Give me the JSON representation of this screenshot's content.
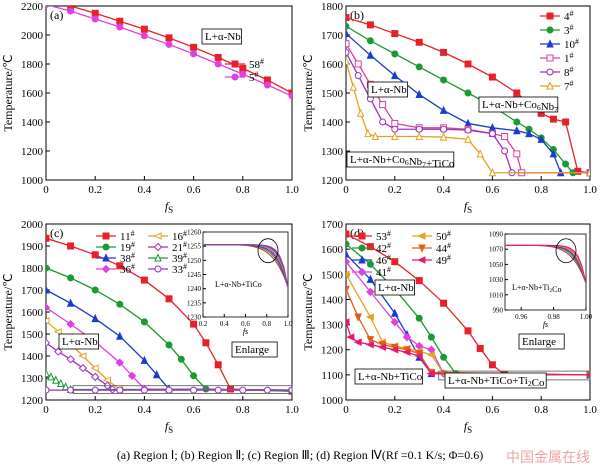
{
  "caption": "(a) Region Ⅰ; (b) Region Ⅱ; (c) Region  Ⅲ;  (d) Region  Ⅳ(Rf =0.1 K/s; Φ=0.6)",
  "watermark": "中国金属在线",
  "chart_data": [
    {
      "id": "a",
      "type": "line",
      "panel_label": "(a)",
      "xlabel": "fS",
      "ylabel": "Temperature/℃",
      "xlim": [
        0,
        1.0
      ],
      "ylim": [
        1000,
        2200
      ],
      "xticks": [
        0,
        0.2,
        0.4,
        0.6,
        0.8,
        1.0
      ],
      "xtick_labels": [
        "0",
        "0.2",
        "0.4",
        "0.6",
        "0.8",
        "1.0"
      ],
      "yticks": [
        1000,
        1200,
        1400,
        1600,
        1800,
        2000,
        2200
      ],
      "ytick_labels": [
        "1000",
        "1200",
        "1400",
        "1600",
        "1800",
        "2000",
        "2200"
      ],
      "legend_position": "center-right",
      "annotations": [
        {
          "text": "L+α-Nb"
        }
      ],
      "series": [
        {
          "name": "58#",
          "color": "#e8202a",
          "marker": "square",
          "x": [
            0,
            0.1,
            0.2,
            0.3,
            0.4,
            0.5,
            0.6,
            0.7,
            0.8,
            0.9,
            1.0
          ],
          "y": [
            2240,
            2200,
            2150,
            2095,
            2040,
            1980,
            1915,
            1845,
            1770,
            1690,
            1600
          ]
        },
        {
          "name": "5#",
          "color": "#e040e0",
          "marker": "circle",
          "x": [
            0,
            0.1,
            0.2,
            0.3,
            0.4,
            0.5,
            0.6,
            0.7,
            0.8,
            0.9,
            1.0
          ],
          "y": [
            2210,
            2165,
            2110,
            2055,
            1995,
            1935,
            1870,
            1800,
            1730,
            1655,
            1580
          ]
        }
      ]
    },
    {
      "id": "b",
      "type": "line",
      "panel_label": "(b)",
      "xlabel": "fS",
      "ylabel": "Temperature/℃",
      "xlim": [
        0,
        1.0
      ],
      "ylim": [
        1200,
        1800
      ],
      "xticks": [
        0,
        0.2,
        0.4,
        0.6,
        0.8,
        1.0
      ],
      "xtick_labels": [
        "0",
        "0.2",
        "0.4",
        "0.6",
        "0.8",
        "1.0"
      ],
      "yticks": [
        1200,
        1300,
        1400,
        1500,
        1600,
        1700,
        1800
      ],
      "ytick_labels": [
        "1200",
        "1300",
        "1400",
        "1500",
        "1600",
        "1700",
        "1800"
      ],
      "legend_position": "top-right",
      "annotations": [
        {
          "text": "L+α-Nb"
        },
        {
          "text": "L+α-Nb+Co6Nb7"
        },
        {
          "text": "L+α-Nb+Co6Nb7+TiCo"
        }
      ],
      "series": [
        {
          "name": "4#",
          "color": "#e8202a",
          "marker": "square",
          "x": [
            0,
            0.1,
            0.2,
            0.3,
            0.4,
            0.5,
            0.6,
            0.7,
            0.8,
            0.85,
            0.9,
            0.95,
            1.0
          ],
          "y": [
            1760,
            1735,
            1705,
            1675,
            1640,
            1600,
            1555,
            1500,
            1430,
            1410,
            1400,
            1230,
            1225
          ]
        },
        {
          "name": "3#",
          "color": "#1a9a30",
          "marker": "circle",
          "x": [
            0,
            0.1,
            0.2,
            0.3,
            0.4,
            0.5,
            0.6,
            0.7,
            0.75,
            0.8,
            0.85,
            0.9,
            0.93,
            1.0
          ],
          "y": [
            1730,
            1680,
            1635,
            1590,
            1545,
            1500,
            1455,
            1400,
            1375,
            1345,
            1305,
            1255,
            1225,
            1225
          ]
        },
        {
          "name": "10#",
          "color": "#1a3ad0",
          "marker": "triangle",
          "x": [
            0,
            0.1,
            0.2,
            0.3,
            0.4,
            0.5,
            0.6,
            0.7,
            0.75,
            0.8,
            0.85,
            0.88,
            1.0
          ],
          "y": [
            1705,
            1630,
            1560,
            1495,
            1440,
            1395,
            1380,
            1370,
            1360,
            1340,
            1290,
            1225,
            1225
          ]
        },
        {
          "name": "1#",
          "color": "#e040a0",
          "marker": "square-open",
          "x": [
            0,
            0.05,
            0.1,
            0.15,
            0.2,
            0.3,
            0.4,
            0.5,
            0.6,
            0.65,
            0.7,
            0.72,
            1.0
          ],
          "y": [
            1670,
            1600,
            1530,
            1460,
            1395,
            1380,
            1380,
            1375,
            1360,
            1350,
            1290,
            1225,
            1225
          ]
        },
        {
          "name": "8#",
          "color": "#9a30c0",
          "marker": "circle-open",
          "x": [
            0,
            0.05,
            0.1,
            0.15,
            0.2,
            0.3,
            0.4,
            0.5,
            0.6,
            0.65,
            0.68,
            1.0
          ],
          "y": [
            1640,
            1560,
            1480,
            1400,
            1375,
            1375,
            1375,
            1372,
            1360,
            1300,
            1225,
            1225
          ]
        },
        {
          "name": "7#",
          "color": "#e8a020",
          "marker": "triangle-open",
          "x": [
            0,
            0.03,
            0.06,
            0.09,
            0.12,
            0.2,
            0.3,
            0.4,
            0.5,
            0.55,
            0.6,
            1.0
          ],
          "y": [
            1610,
            1520,
            1430,
            1360,
            1350,
            1350,
            1350,
            1348,
            1340,
            1290,
            1225,
            1225
          ]
        }
      ]
    },
    {
      "id": "c",
      "type": "line",
      "panel_label": "(c)",
      "xlabel": "fS",
      "ylabel": "Temperature/℃",
      "xlim": [
        0,
        1.0
      ],
      "ylim": [
        1200,
        2000
      ],
      "xticks": [
        0,
        0.2,
        0.4,
        0.6,
        0.8,
        1.0
      ],
      "xtick_labels": [
        "0",
        "0.2",
        "0.4",
        "0.6",
        "0.8",
        "1.0"
      ],
      "yticks": [
        1200,
        1300,
        1400,
        1500,
        1600,
        1700,
        1800,
        1900,
        2000
      ],
      "ytick_labels": [
        "1200",
        "1300",
        "1400",
        "1500",
        "1600",
        "1700",
        "1800",
        "1900",
        "2000"
      ],
      "legend_position": "top-center",
      "annotations": [
        {
          "text": "L+α-Nb"
        },
        {
          "text": "Enlarge"
        }
      ],
      "series": [
        {
          "name": "11#",
          "color": "#e8202a",
          "marker": "square",
          "x": [
            0,
            0.1,
            0.2,
            0.3,
            0.4,
            0.5,
            0.6,
            0.65,
            0.7,
            0.75,
            1.0
          ],
          "y": [
            1935,
            1900,
            1860,
            1810,
            1745,
            1660,
            1545,
            1460,
            1360,
            1250,
            1240
          ]
        },
        {
          "name": "19#",
          "color": "#1a9a30",
          "marker": "circle",
          "x": [
            0,
            0.1,
            0.2,
            0.3,
            0.4,
            0.5,
            0.55,
            0.6,
            0.65,
            1.0
          ],
          "y": [
            1800,
            1755,
            1700,
            1635,
            1555,
            1450,
            1385,
            1310,
            1250,
            1240
          ]
        },
        {
          "name": "38#",
          "color": "#1a3ad0",
          "marker": "triangle",
          "x": [
            0,
            0.1,
            0.2,
            0.3,
            0.4,
            0.45,
            0.5,
            1.0
          ],
          "y": [
            1700,
            1640,
            1570,
            1490,
            1380,
            1315,
            1250,
            1245
          ]
        },
        {
          "name": "36#",
          "color": "#e040e0",
          "marker": "diamond",
          "x": [
            0,
            0.1,
            0.2,
            0.3,
            0.35,
            0.4,
            1.0
          ],
          "y": [
            1620,
            1545,
            1465,
            1370,
            1310,
            1250,
            1245
          ]
        },
        {
          "name": "16#",
          "color": "#e8a020",
          "marker": "triangle-left-open",
          "x": [
            0,
            0.05,
            0.1,
            0.15,
            0.2,
            0.25,
            0.3,
            1.0
          ],
          "y": [
            1560,
            1510,
            1455,
            1400,
            1345,
            1290,
            1248,
            1245
          ]
        },
        {
          "name": "21#",
          "color": "#9a30c0",
          "marker": "diamond-open",
          "x": [
            0,
            0.05,
            0.1,
            0.15,
            0.2,
            0.25,
            0.27,
            1.0
          ],
          "y": [
            1460,
            1420,
            1385,
            1345,
            1305,
            1265,
            1248,
            1245
          ]
        },
        {
          "name": "39#",
          "color": "#1a9a30",
          "marker": "triangle-open",
          "x": [
            0,
            0.02,
            0.04,
            0.06,
            0.08,
            0.1,
            1.0
          ],
          "y": [
            1320,
            1305,
            1290,
            1275,
            1260,
            1248,
            1245
          ]
        },
        {
          "name": "33#",
          "color": "#9a30c0",
          "marker": "circle-open",
          "x": [
            0,
            0.1,
            0.2,
            0.3,
            0.4,
            0.5,
            0.6,
            0.7,
            0.8,
            0.9,
            1.0
          ],
          "y": [
            1245,
            1245,
            1245,
            1245,
            1245,
            1245,
            1245,
            1245,
            1245,
            1245,
            1245
          ]
        }
      ],
      "inset": {
        "xlim": [
          0.2,
          1.0
        ],
        "ylim": [
          1230,
          1260
        ],
        "xticks": [
          0.2,
          0.4,
          0.6,
          0.8,
          1.0
        ],
        "xtick_labels": [
          "0.2",
          "0.4",
          "0.6",
          "0.8",
          "1.0"
        ],
        "yticks": [
          1230,
          1235,
          1240,
          1245,
          1250,
          1255,
          1260
        ],
        "ytick_labels": [
          "1230",
          "1235",
          "1240",
          "1245",
          "1250",
          "1255",
          "1260"
        ],
        "xlabel": "fs",
        "annotations": [
          {
            "text": "L+α-Nb+TiCo"
          }
        ]
      }
    },
    {
      "id": "d",
      "type": "line",
      "panel_label": "(d)",
      "xlabel": "fS",
      "ylabel": "Temperature/℃",
      "xlim": [
        0,
        1.0
      ],
      "ylim": [
        1000,
        1700
      ],
      "xticks": [
        0,
        0.2,
        0.4,
        0.6,
        0.8,
        1.0
      ],
      "xtick_labels": [
        "0",
        "0.2",
        "0.4",
        "0.6",
        "0.8",
        "1.0"
      ],
      "yticks": [
        1000,
        1100,
        1200,
        1300,
        1400,
        1500,
        1600,
        1700
      ],
      "ytick_labels": [
        "1000",
        "1100",
        "1200",
        "1300",
        "1400",
        "1500",
        "1600",
        "1700"
      ],
      "legend_position": "top-left",
      "annotations": [
        {
          "text": "L+α-Nb"
        },
        {
          "text": "Enlarge"
        },
        {
          "text": "L+α-Nb+TiCo"
        },
        {
          "text": "L+α-Nb+TiCo+Ti2Co"
        }
      ],
      "series": [
        {
          "name": "53#",
          "color": "#e8202a",
          "marker": "square",
          "x": [
            0,
            0.1,
            0.2,
            0.3,
            0.4,
            0.5,
            0.55,
            0.6,
            0.65,
            1.0
          ],
          "y": [
            1660,
            1610,
            1550,
            1475,
            1385,
            1275,
            1205,
            1140,
            1100,
            1100
          ]
        },
        {
          "name": "42#",
          "color": "#1a9a30",
          "marker": "circle",
          "x": [
            0,
            0.1,
            0.2,
            0.3,
            0.35,
            0.4,
            0.45,
            1.0
          ],
          "y": [
            1620,
            1540,
            1440,
            1325,
            1250,
            1170,
            1105,
            1100
          ]
        },
        {
          "name": "46#",
          "color": "#1a3ad0",
          "marker": "triangle",
          "x": [
            0,
            0.1,
            0.2,
            0.25,
            0.3,
            0.35,
            1.0
          ],
          "y": [
            1580,
            1480,
            1345,
            1260,
            1170,
            1105,
            1100
          ]
        },
        {
          "name": "41#",
          "color": "#e040e0",
          "marker": "diamond",
          "x": [
            0,
            0.1,
            0.2,
            0.25,
            0.3,
            0.35,
            0.4,
            1.0
          ],
          "y": [
            1550,
            1430,
            1310,
            1250,
            1215,
            1200,
            1105,
            1100
          ]
        },
        {
          "name": "50#",
          "color": "#e8a020",
          "marker": "triangle-left",
          "x": [
            0,
            0.1,
            0.15,
            0.2,
            0.25,
            0.3,
            0.35,
            0.4,
            1.0
          ],
          "y": [
            1500,
            1330,
            1230,
            1215,
            1205,
            1195,
            1180,
            1105,
            1100
          ]
        },
        {
          "name": "44#",
          "color": "#e06010",
          "marker": "triangle-down",
          "x": [
            0,
            0.05,
            0.1,
            0.15,
            0.2,
            0.25,
            0.3,
            0.35,
            1.0
          ],
          "y": [
            1440,
            1330,
            1240,
            1220,
            1210,
            1200,
            1185,
            1110,
            1100
          ]
        },
        {
          "name": "49#",
          "color": "#e81870",
          "marker": "triangle-left",
          "x": [
            0,
            0.02,
            0.05,
            0.1,
            0.15,
            0.2,
            0.25,
            0.3,
            0.35,
            1.0
          ],
          "y": [
            1310,
            1250,
            1230,
            1220,
            1210,
            1200,
            1190,
            1175,
            1105,
            1100
          ]
        }
      ],
      "inset": {
        "xlim": [
          0.95,
          1.0
        ],
        "ylim": [
          990,
          1090
        ],
        "xticks": [
          0.96,
          0.98,
          1.0
        ],
        "xtick_labels": [
          "0.96",
          "0.98",
          "1.00"
        ],
        "yticks": [
          990,
          1010,
          1030,
          1050,
          1070,
          1090
        ],
        "ytick_labels": [
          "990",
          "1010",
          "1030",
          "1050",
          "1070",
          "1090"
        ],
        "xlabel": "fs",
        "annotations": [
          {
            "text": "L+α-Nb+Ti2Co"
          }
        ]
      }
    }
  ]
}
